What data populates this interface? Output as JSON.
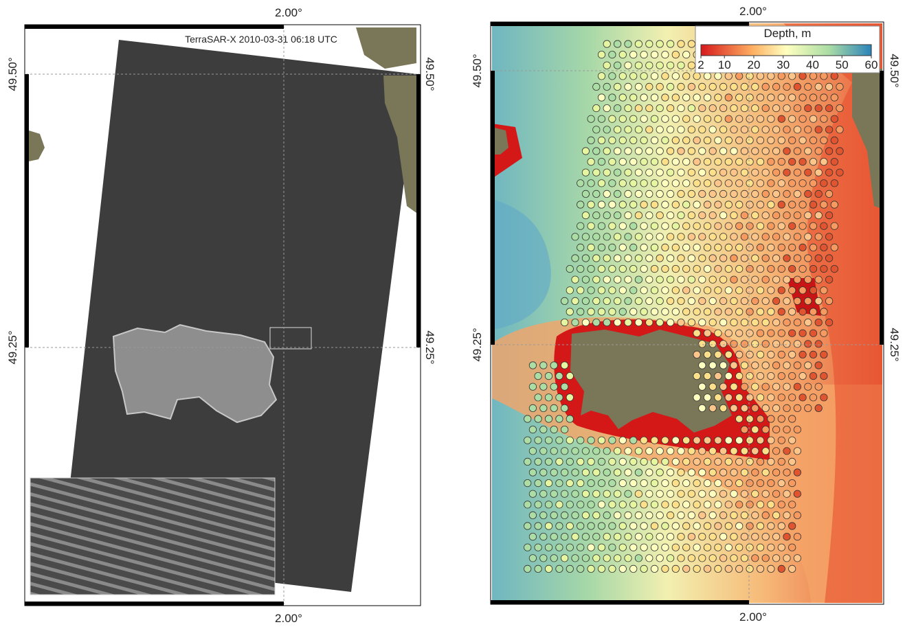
{
  "panels": [
    {
      "top_label": "2.00°",
      "bottom_label": "2.00°",
      "left_labels": [
        "49.50°",
        "49.25°"
      ],
      "right_labels": [
        "49.50°",
        "49.25°"
      ],
      "annotation": "TerraSAR-X  2010-03-31 06:18  UTC"
    },
    {
      "top_label": "2.00°",
      "bottom_label": "2.00°",
      "left_labels": [
        "49.50°",
        "49.25°"
      ],
      "right_labels": [
        "49.50°",
        "49.25°"
      ]
    }
  ],
  "colorbar": {
    "title": "Depth, m",
    "range": [
      2,
      60
    ],
    "ticks": [
      2,
      10,
      20,
      30,
      40,
      50,
      60
    ]
  }
}
